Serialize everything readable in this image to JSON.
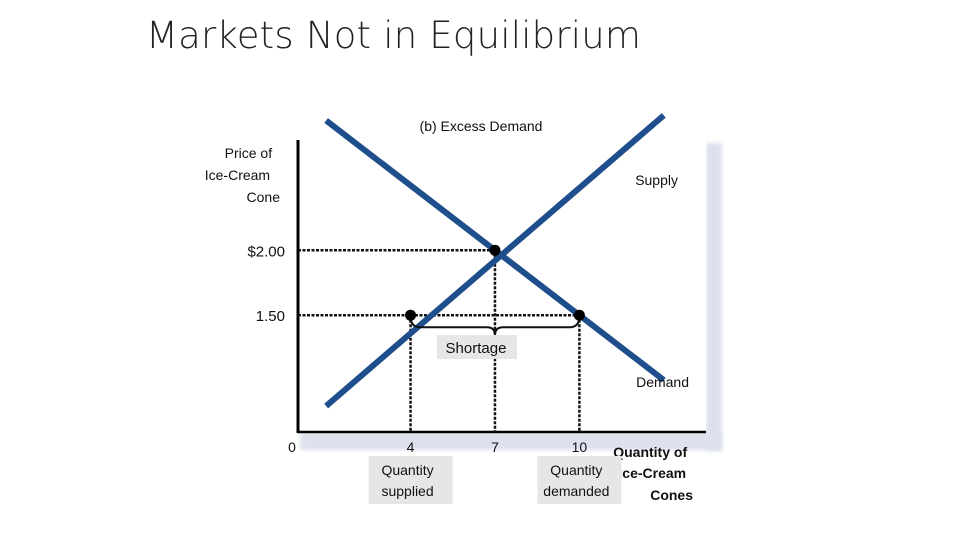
{
  "slide": {
    "title": "Markets Not in Equilibrium"
  },
  "chart_data": {
    "type": "line",
    "title": "(b) Excess Demand",
    "ylabel": [
      "Price of",
      "Ice-Cream",
      "Cone"
    ],
    "xlabel": [
      "Quantity of",
      "Ice-Cream",
      "Cones"
    ],
    "origin_label": "0",
    "xlim": [
      0,
      14.5
    ],
    "ylim": [
      0.6,
      2.85
    ],
    "series": [
      {
        "name": "Supply",
        "x": [
          1,
          4,
          7,
          13
        ],
        "y": [
          0.8,
          1.5,
          2.0,
          3.04
        ],
        "color": "#1f4e8c"
      },
      {
        "name": "Demand",
        "x": [
          1,
          7,
          10,
          13
        ],
        "y": [
          3.0,
          2.0,
          1.5,
          1.0
        ],
        "color": "#1f4e8c"
      }
    ],
    "points": [
      {
        "x": 7,
        "y": 2.0
      },
      {
        "x": 4,
        "y": 1.5
      },
      {
        "x": 10,
        "y": 1.5
      }
    ],
    "y_ticks": [
      {
        "value": 2.0,
        "label": "$2.00"
      },
      {
        "value": 1.5,
        "label": "1.50"
      }
    ],
    "x_ticks": [
      {
        "value": 4,
        "label": "4",
        "sublabel": [
          "Quantity",
          "supplied"
        ]
      },
      {
        "value": 7,
        "label": "7"
      },
      {
        "value": 10,
        "label": "10",
        "sublabel": [
          "Quantity",
          "demanded"
        ]
      }
    ],
    "annotation": {
      "label": "Shortage",
      "from_x": 4,
      "to_x": 10,
      "at_y": 1.5
    }
  }
}
